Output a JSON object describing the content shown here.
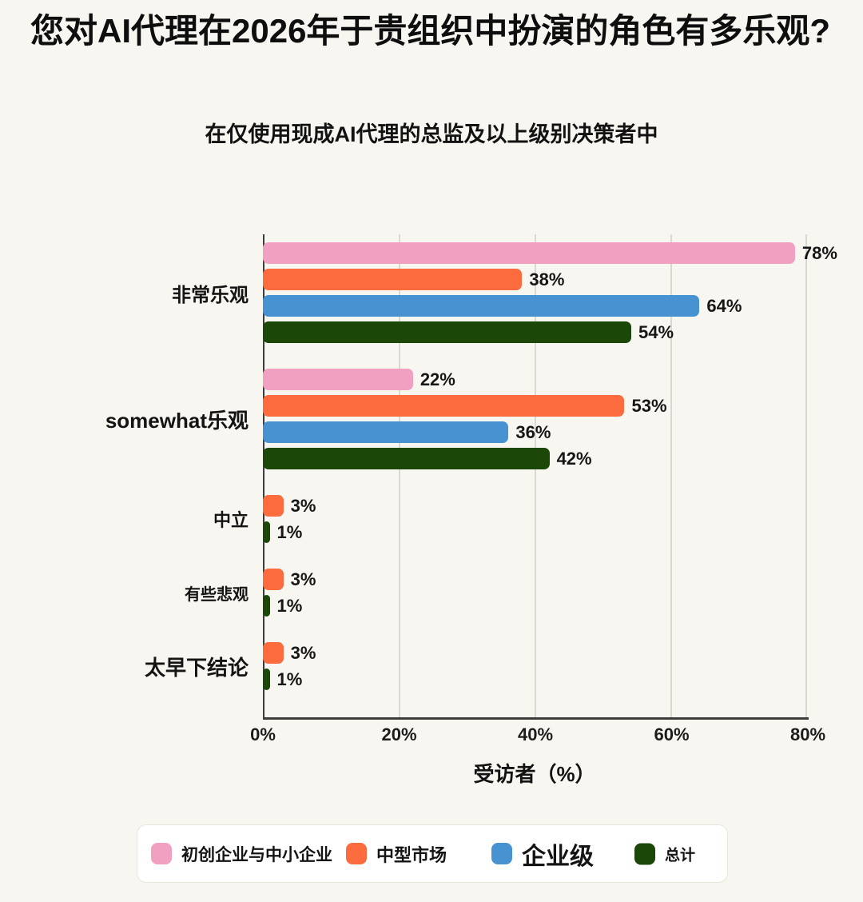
{
  "title": "您对AI代理在2026年于贵组织中扮演的角色有多乐观?",
  "subtitle": "在仅使用现成AI代理的总监及以上级别决策者中",
  "colors": {
    "background": "#F8F6F0",
    "grid": "#DCD8CF",
    "axis": "#3d3d3d",
    "pink": "#F1A0C1",
    "orange": "#FC6B3E",
    "blue": "#4792D0",
    "dark_green": "#1B4708"
  },
  "chart_data": {
    "type": "bar",
    "orientation": "horizontal",
    "title": "您对AI代理在2026年于贵组织中扮演的角色有多乐观?",
    "subtitle": "在仅使用现成AI代理的总监及以上级别决策者中",
    "xlabel": "受访者（%）",
    "ylabel": "",
    "xlim": [
      0,
      80
    ],
    "x_ticks": [
      "0%",
      "20%",
      "40%",
      "60%",
      "80%"
    ],
    "grid": "vertical-only",
    "legend_position": "bottom",
    "zero_value_bars_hidden": true,
    "value_suffix": "%",
    "categories": [
      "非常乐观",
      "somewhat乐观",
      "中立",
      "有些悲观",
      "太早下结论"
    ],
    "series": [
      {
        "name": "初创企业与中小企业",
        "color": "#F1A0C1",
        "values": [
          78,
          22,
          0,
          0,
          0
        ]
      },
      {
        "name": "中型市场",
        "color": "#FC6B3E",
        "values": [
          38,
          53,
          3,
          3,
          3
        ]
      },
      {
        "name": "企业级",
        "color": "#4792D0",
        "values": [
          64,
          36,
          0,
          0,
          0
        ]
      },
      {
        "name": "总计",
        "color": "#1B4708",
        "values": [
          54,
          42,
          1,
          1,
          1
        ]
      }
    ]
  },
  "legend": {
    "items": [
      {
        "label": "初创企业与中小企业",
        "color": "#F1A0C1"
      },
      {
        "label": "中型市场",
        "color": "#FC6B3E"
      },
      {
        "label": "企业级",
        "color": "#4792D0"
      },
      {
        "label": "总计",
        "color": "#1B4708"
      }
    ]
  }
}
